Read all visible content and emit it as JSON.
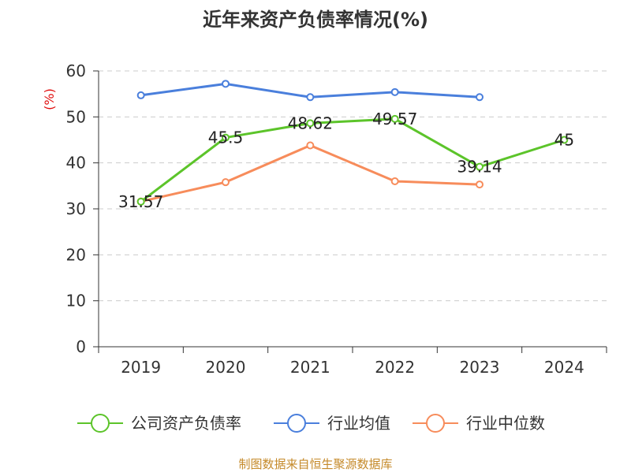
{
  "chart_data": {
    "type": "line",
    "title": "近年来资产负债率情况(%)",
    "ylabel": "(%)",
    "xlabel": "",
    "ylim": [
      0,
      60
    ],
    "yticks": [
      0,
      10,
      20,
      30,
      40,
      50,
      60
    ],
    "categories": [
      "2019",
      "2020",
      "2021",
      "2022",
      "2023",
      "2024"
    ],
    "grid": true,
    "legend_position": "bottom",
    "series": [
      {
        "name": "公司资产负债率",
        "color": "#5cc42a",
        "values": [
          31.57,
          45.5,
          48.62,
          49.57,
          39.14,
          45
        ],
        "labels": [
          "31.57",
          "45.5",
          "48.62",
          "49.57",
          "39.14",
          "45"
        ],
        "show_labels": true
      },
      {
        "name": "行业均值",
        "color": "#4a7fdc",
        "values": [
          54.7,
          57.2,
          54.3,
          55.4,
          54.3,
          null
        ],
        "show_labels": false
      },
      {
        "name": "行业中位数",
        "color": "#f78c5b",
        "values": [
          31.6,
          35.8,
          43.8,
          36.0,
          35.3,
          null
        ],
        "show_labels": false
      }
    ],
    "source": "制图数据来自恒生聚源数据库"
  }
}
